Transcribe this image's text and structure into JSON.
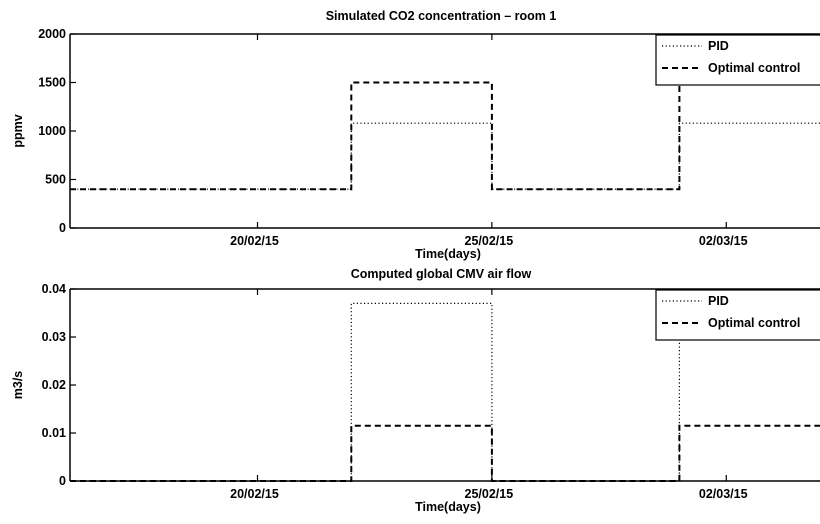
{
  "chart_data": [
    {
      "type": "line",
      "title": "Simulated CO2 concentration – room 1",
      "xlabel": "Time(days)",
      "ylabel": "ppmv",
      "ylim": [
        0,
        2000
      ],
      "yticks": [
        0,
        500,
        1000,
        1500,
        2000
      ],
      "xlim": [
        "2015-02-16",
        "2015-03-04"
      ],
      "xticks": [
        {
          "date": "2015-02-20",
          "label": "20/02/15"
        },
        {
          "date": "2015-02-25",
          "label": "25/02/15"
        },
        {
          "date": "2015-03-02",
          "label": "02/03/15"
        }
      ],
      "grid": false,
      "legend_position": "top-right",
      "series": [
        {
          "name": "PID",
          "style": "dotted",
          "color": "#000000",
          "points": [
            [
              "2015-02-16",
              400
            ],
            [
              "2015-02-22",
              400
            ],
            [
              "2015-02-22",
              1080
            ],
            [
              "2015-02-25",
              1080
            ],
            [
              "2015-02-25",
              400
            ],
            [
              "2015-03-01",
              400
            ],
            [
              "2015-03-01",
              1080
            ],
            [
              "2015-03-04",
              1080
            ]
          ]
        },
        {
          "name": "Optimal control",
          "style": "dashed",
          "color": "#000000",
          "points": [
            [
              "2015-02-16",
              400
            ],
            [
              "2015-02-22",
              400
            ],
            [
              "2015-02-22",
              1500
            ],
            [
              "2015-02-25",
              1500
            ],
            [
              "2015-02-25",
              400
            ],
            [
              "2015-03-01",
              400
            ],
            [
              "2015-03-01",
              1500
            ],
            [
              "2015-03-04",
              1500
            ]
          ]
        }
      ]
    },
    {
      "type": "line",
      "title": "Computed global CMV air flow",
      "xlabel": "Time(days)",
      "ylabel": "m3/s",
      "ylim": [
        0,
        0.04
      ],
      "yticks": [
        0,
        0.01,
        0.02,
        0.03,
        0.04
      ],
      "xlim": [
        "2015-02-16",
        "2015-03-04"
      ],
      "xticks": [
        {
          "date": "2015-02-20",
          "label": "20/02/15"
        },
        {
          "date": "2015-02-25",
          "label": "25/02/15"
        },
        {
          "date": "2015-03-02",
          "label": "02/03/15"
        }
      ],
      "grid": false,
      "legend_position": "top-right",
      "series": [
        {
          "name": "PID",
          "style": "dotted",
          "color": "#000000",
          "points": [
            [
              "2015-02-16",
              0
            ],
            [
              "2015-02-22",
              0
            ],
            [
              "2015-02-22",
              0.037
            ],
            [
              "2015-02-25",
              0.037
            ],
            [
              "2015-02-25",
              0
            ],
            [
              "2015-03-01",
              0
            ],
            [
              "2015-03-01",
              0.037
            ],
            [
              "2015-03-04",
              0.037
            ]
          ]
        },
        {
          "name": "Optimal control",
          "style": "dashed",
          "color": "#000000",
          "points": [
            [
              "2015-02-16",
              0
            ],
            [
              "2015-02-22",
              0
            ],
            [
              "2015-02-22",
              0.0115
            ],
            [
              "2015-02-25",
              0.0115
            ],
            [
              "2015-02-25",
              0
            ],
            [
              "2015-03-01",
              0
            ],
            [
              "2015-03-01",
              0.0115
            ],
            [
              "2015-03-04",
              0.0115
            ]
          ]
        }
      ]
    }
  ]
}
